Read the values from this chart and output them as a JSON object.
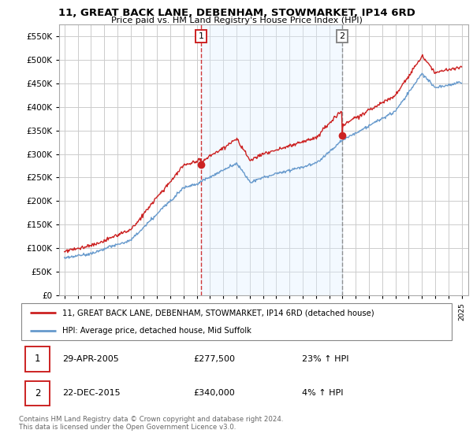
{
  "title": "11, GREAT BACK LANE, DEBENHAM, STOWMARKET, IP14 6RD",
  "subtitle": "Price paid vs. HM Land Registry's House Price Index (HPI)",
  "legend_line1": "11, GREAT BACK LANE, DEBENHAM, STOWMARKET, IP14 6RD (detached house)",
  "legend_line2": "HPI: Average price, detached house, Mid Suffolk",
  "annotation1_date": "29-APR-2005",
  "annotation1_price": "£277,500",
  "annotation1_hpi": "23% ↑ HPI",
  "annotation2_date": "22-DEC-2015",
  "annotation2_price": "£340,000",
  "annotation2_hpi": "4% ↑ HPI",
  "footer": "Contains HM Land Registry data © Crown copyright and database right 2024.\nThis data is licensed under the Open Government Licence v3.0.",
  "price_color": "#cc2222",
  "hpi_color": "#6699cc",
  "shade_color": "#ddeeff",
  "background_color": "#ffffff",
  "grid_color": "#cccccc",
  "ylim": [
    0,
    575000
  ],
  "yticks": [
    0,
    50000,
    100000,
    150000,
    200000,
    250000,
    300000,
    350000,
    400000,
    450000,
    500000,
    550000
  ],
  "sale1_year": 2005.32,
  "sale1_price": 277500,
  "sale2_year": 2015.97,
  "sale2_price": 340000,
  "xmin": 1995,
  "xmax": 2025
}
